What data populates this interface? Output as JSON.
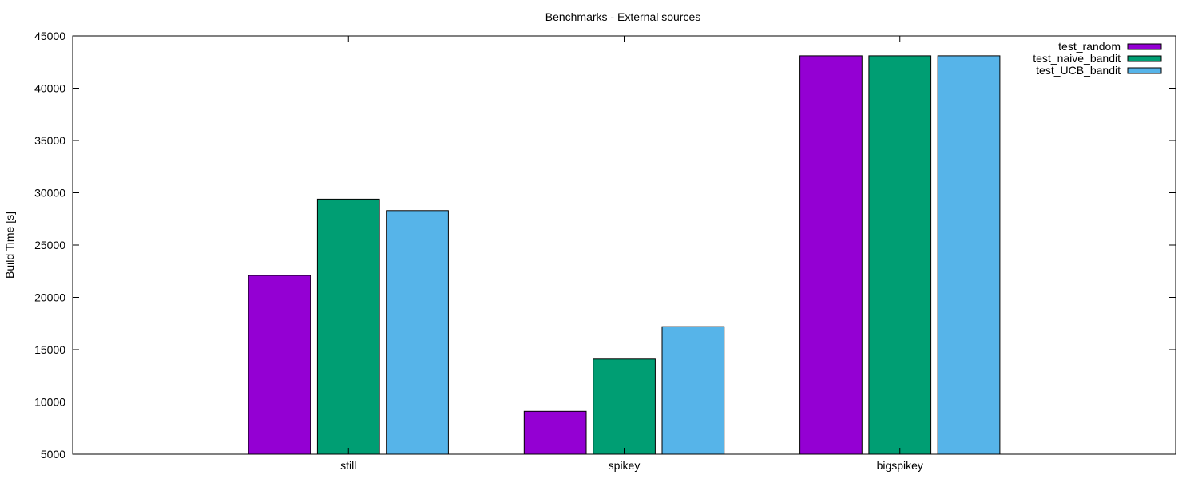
{
  "chart_data": {
    "type": "bar",
    "title": "Benchmarks - External sources",
    "xlabel": "",
    "ylabel": "Build Time [s]",
    "ylim": [
      5000,
      45000
    ],
    "yticks": [
      5000,
      10000,
      15000,
      20000,
      25000,
      30000,
      35000,
      40000,
      45000
    ],
    "categories": [
      "still",
      "spikey",
      "bigspikey"
    ],
    "series": [
      {
        "name": "test_random",
        "color": "#9400d3",
        "values": [
          22100,
          9100,
          43100
        ]
      },
      {
        "name": "test_naive_bandit",
        "color": "#009e73",
        "values": [
          29400,
          14100,
          43100
        ]
      },
      {
        "name": "test_UCB_bandit",
        "color": "#56b4e9",
        "values": [
          28300,
          17200,
          43100
        ]
      }
    ],
    "grid": false,
    "legend_position": "top-right"
  }
}
